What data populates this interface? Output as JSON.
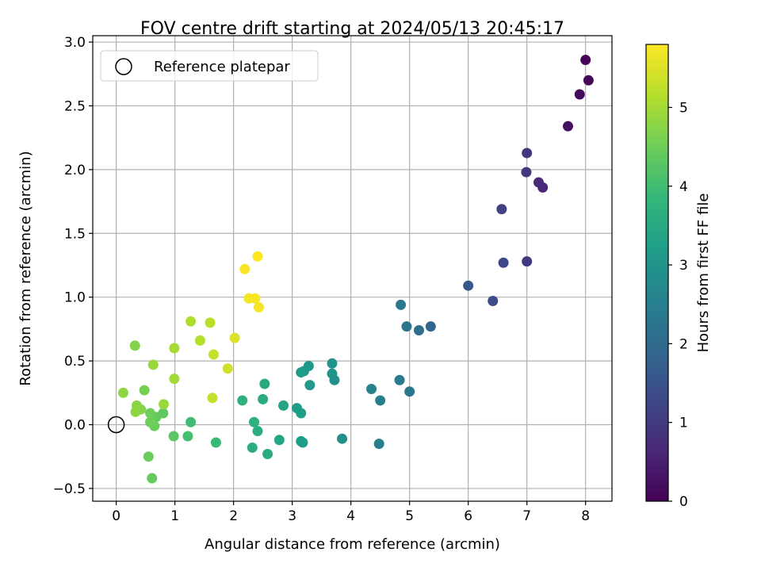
{
  "chart_data": {
    "type": "scatter",
    "title": "FOV centre drift starting at 2024/05/13 20:45:17",
    "xlabel": "Angular distance from reference (arcmin)",
    "ylabel": "Rotation from reference (arcmin)",
    "xlim": [
      -0.4,
      8.45
    ],
    "ylim": [
      -0.6,
      3.05
    ],
    "x_ticks": [
      0,
      1,
      2,
      3,
      4,
      5,
      6,
      7,
      8
    ],
    "x_tick_labels": [
      "0",
      "1",
      "2",
      "3",
      "4",
      "5",
      "6",
      "7",
      "8"
    ],
    "y_ticks": [
      -0.5,
      0.0,
      0.5,
      1.0,
      1.5,
      2.0,
      2.5,
      3.0
    ],
    "y_tick_labels": [
      "−0.5",
      "0.0",
      "0.5",
      "1.0",
      "1.5",
      "2.0",
      "2.5",
      "3.0"
    ],
    "grid": true,
    "legend": {
      "position": "top-left",
      "entries": [
        {
          "label": "Reference platepar",
          "marker": "hollow-circle",
          "color": "#000000"
        }
      ]
    },
    "reference_point": {
      "x": 0,
      "y": 0
    },
    "colorbar": {
      "label": "Hours from first FF file",
      "range": [
        0,
        5.8
      ],
      "ticks": [
        0,
        1,
        2,
        3,
        4,
        5
      ],
      "tick_labels": [
        "0",
        "1",
        "2",
        "3",
        "4",
        "5"
      ],
      "colormap": "viridis",
      "stops": [
        "#440154",
        "#482878",
        "#3e4989",
        "#31688e",
        "#26828e",
        "#1f9e89",
        "#35b779",
        "#6ece58",
        "#b5de2b",
        "#fde725"
      ]
    },
    "points": [
      {
        "x": 8.0,
        "y": 2.86,
        "c": 0.05
      },
      {
        "x": 8.05,
        "y": 2.7,
        "c": 0.1
      },
      {
        "x": 7.9,
        "y": 2.59,
        "c": 0.15
      },
      {
        "x": 7.7,
        "y": 2.34,
        "c": 0.25
      },
      {
        "x": 7.0,
        "y": 2.13,
        "c": 0.9
      },
      {
        "x": 6.99,
        "y": 1.98,
        "c": 0.95
      },
      {
        "x": 7.2,
        "y": 1.9,
        "c": 0.7
      },
      {
        "x": 7.27,
        "y": 1.86,
        "c": 0.65
      },
      {
        "x": 6.57,
        "y": 1.69,
        "c": 1.15
      },
      {
        "x": 6.6,
        "y": 1.27,
        "c": 1.25
      },
      {
        "x": 7.0,
        "y": 1.28,
        "c": 1.0
      },
      {
        "x": 6.0,
        "y": 1.09,
        "c": 1.6
      },
      {
        "x": 6.42,
        "y": 0.97,
        "c": 1.35
      },
      {
        "x": 4.85,
        "y": 0.94,
        "c": 2.3
      },
      {
        "x": 4.95,
        "y": 0.77,
        "c": 2.2
      },
      {
        "x": 5.16,
        "y": 0.74,
        "c": 2.1
      },
      {
        "x": 5.36,
        "y": 0.77,
        "c": 1.9
      },
      {
        "x": 4.83,
        "y": 0.35,
        "c": 2.4
      },
      {
        "x": 5.0,
        "y": 0.26,
        "c": 2.3
      },
      {
        "x": 4.35,
        "y": 0.28,
        "c": 2.6
      },
      {
        "x": 4.5,
        "y": 0.19,
        "c": 2.5
      },
      {
        "x": 4.48,
        "y": -0.15,
        "c": 2.5
      },
      {
        "x": 3.68,
        "y": 0.48,
        "c": 3.0
      },
      {
        "x": 3.68,
        "y": 0.4,
        "c": 3.0
      },
      {
        "x": 3.72,
        "y": 0.35,
        "c": 2.9
      },
      {
        "x": 3.85,
        "y": -0.11,
        "c": 2.9
      },
      {
        "x": 3.28,
        "y": 0.46,
        "c": 3.1
      },
      {
        "x": 3.2,
        "y": 0.42,
        "c": 3.15
      },
      {
        "x": 3.15,
        "y": 0.41,
        "c": 3.2
      },
      {
        "x": 3.3,
        "y": 0.31,
        "c": 3.1
      },
      {
        "x": 3.08,
        "y": 0.13,
        "c": 3.2
      },
      {
        "x": 3.15,
        "y": 0.09,
        "c": 3.25
      },
      {
        "x": 3.15,
        "y": -0.13,
        "c": 3.2
      },
      {
        "x": 3.18,
        "y": -0.14,
        "c": 3.2
      },
      {
        "x": 2.85,
        "y": 0.15,
        "c": 3.4
      },
      {
        "x": 2.78,
        "y": -0.12,
        "c": 3.4
      },
      {
        "x": 2.53,
        "y": 0.32,
        "c": 3.5
      },
      {
        "x": 2.5,
        "y": 0.2,
        "c": 3.55
      },
      {
        "x": 2.15,
        "y": 0.19,
        "c": 3.7
      },
      {
        "x": 2.35,
        "y": 0.02,
        "c": 3.65
      },
      {
        "x": 2.41,
        "y": -0.05,
        "c": 3.6
      },
      {
        "x": 2.32,
        "y": -0.18,
        "c": 3.6
      },
      {
        "x": 2.58,
        "y": -0.23,
        "c": 3.55
      },
      {
        "x": 1.27,
        "y": 0.02,
        "c": 4.0
      },
      {
        "x": 1.7,
        "y": -0.14,
        "c": 3.9
      },
      {
        "x": 1.22,
        "y": -0.09,
        "c": 4.05
      },
      {
        "x": 0.98,
        "y": -0.09,
        "c": 4.3
      },
      {
        "x": 0.8,
        "y": 0.09,
        "c": 4.35
      },
      {
        "x": 0.68,
        "y": 0.06,
        "c": 4.4
      },
      {
        "x": 0.65,
        "y": -0.01,
        "c": 4.45
      },
      {
        "x": 0.58,
        "y": 0.09,
        "c": 4.5
      },
      {
        "x": 0.58,
        "y": 0.02,
        "c": 4.5
      },
      {
        "x": 0.55,
        "y": -0.25,
        "c": 4.45
      },
      {
        "x": 0.61,
        "y": -0.42,
        "c": 4.4
      },
      {
        "x": 0.48,
        "y": 0.27,
        "c": 4.6
      },
      {
        "x": 0.42,
        "y": 0.12,
        "c": 4.7
      },
      {
        "x": 0.35,
        "y": 0.15,
        "c": 4.75
      },
      {
        "x": 0.33,
        "y": 0.1,
        "c": 4.8
      },
      {
        "x": 0.12,
        "y": 0.25,
        "c": 4.8
      },
      {
        "x": 0.32,
        "y": 0.62,
        "c": 4.7
      },
      {
        "x": 0.63,
        "y": 0.47,
        "c": 4.9
      },
      {
        "x": 0.81,
        "y": 0.16,
        "c": 4.9
      },
      {
        "x": 0.99,
        "y": 0.36,
        "c": 5.0
      },
      {
        "x": 0.99,
        "y": 0.6,
        "c": 5.0
      },
      {
        "x": 1.27,
        "y": 0.81,
        "c": 5.1
      },
      {
        "x": 1.43,
        "y": 0.66,
        "c": 5.15
      },
      {
        "x": 1.6,
        "y": 0.8,
        "c": 5.2
      },
      {
        "x": 1.66,
        "y": 0.55,
        "c": 5.3
      },
      {
        "x": 1.64,
        "y": 0.21,
        "c": 5.3
      },
      {
        "x": 1.9,
        "y": 0.44,
        "c": 5.4
      },
      {
        "x": 2.02,
        "y": 0.68,
        "c": 5.5
      },
      {
        "x": 2.19,
        "y": 1.22,
        "c": 5.75
      },
      {
        "x": 2.26,
        "y": 0.99,
        "c": 5.7
      },
      {
        "x": 2.37,
        "y": 0.99,
        "c": 5.75
      },
      {
        "x": 2.43,
        "y": 0.92,
        "c": 5.7
      },
      {
        "x": 2.41,
        "y": 1.32,
        "c": 5.8
      }
    ]
  }
}
